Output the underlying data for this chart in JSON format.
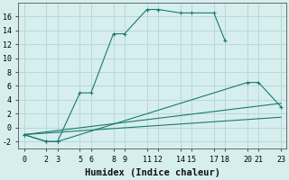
{
  "xlabel": "Humidex (Indice chaleur)",
  "bg_color": "#d6eeee",
  "grid_color": "#b8d8d8",
  "line_color": "#1a7a6e",
  "lines": [
    {
      "x": [
        0,
        2,
        3,
        5,
        6,
        8,
        9,
        11,
        12,
        14,
        15,
        17,
        18
      ],
      "y": [
        -1,
        -2,
        -2,
        5,
        5,
        13.5,
        13.5,
        17,
        17,
        16.5,
        16.5,
        16.5,
        12.5
      ],
      "has_markers": true
    },
    {
      "x": [
        0,
        2,
        3,
        20,
        21,
        23
      ],
      "y": [
        -1,
        -2,
        -2,
        6.5,
        6.5,
        3
      ],
      "has_markers": true
    },
    {
      "x": [
        0,
        23
      ],
      "y": [
        -1,
        3.5
      ],
      "has_markers": false
    },
    {
      "x": [
        0,
        23
      ],
      "y": [
        -1,
        1.5
      ],
      "has_markers": false
    }
  ],
  "xlim": [
    -0.5,
    23.5
  ],
  "ylim": [
    -3,
    18
  ],
  "xticks": [
    0,
    2,
    3,
    5,
    6,
    8,
    9,
    11,
    12,
    14,
    15,
    17,
    18,
    20,
    21,
    23
  ],
  "yticks": [
    -2,
    0,
    2,
    4,
    6,
    8,
    10,
    12,
    14,
    16
  ],
  "tick_fontsize": 6,
  "label_fontsize": 7.5
}
